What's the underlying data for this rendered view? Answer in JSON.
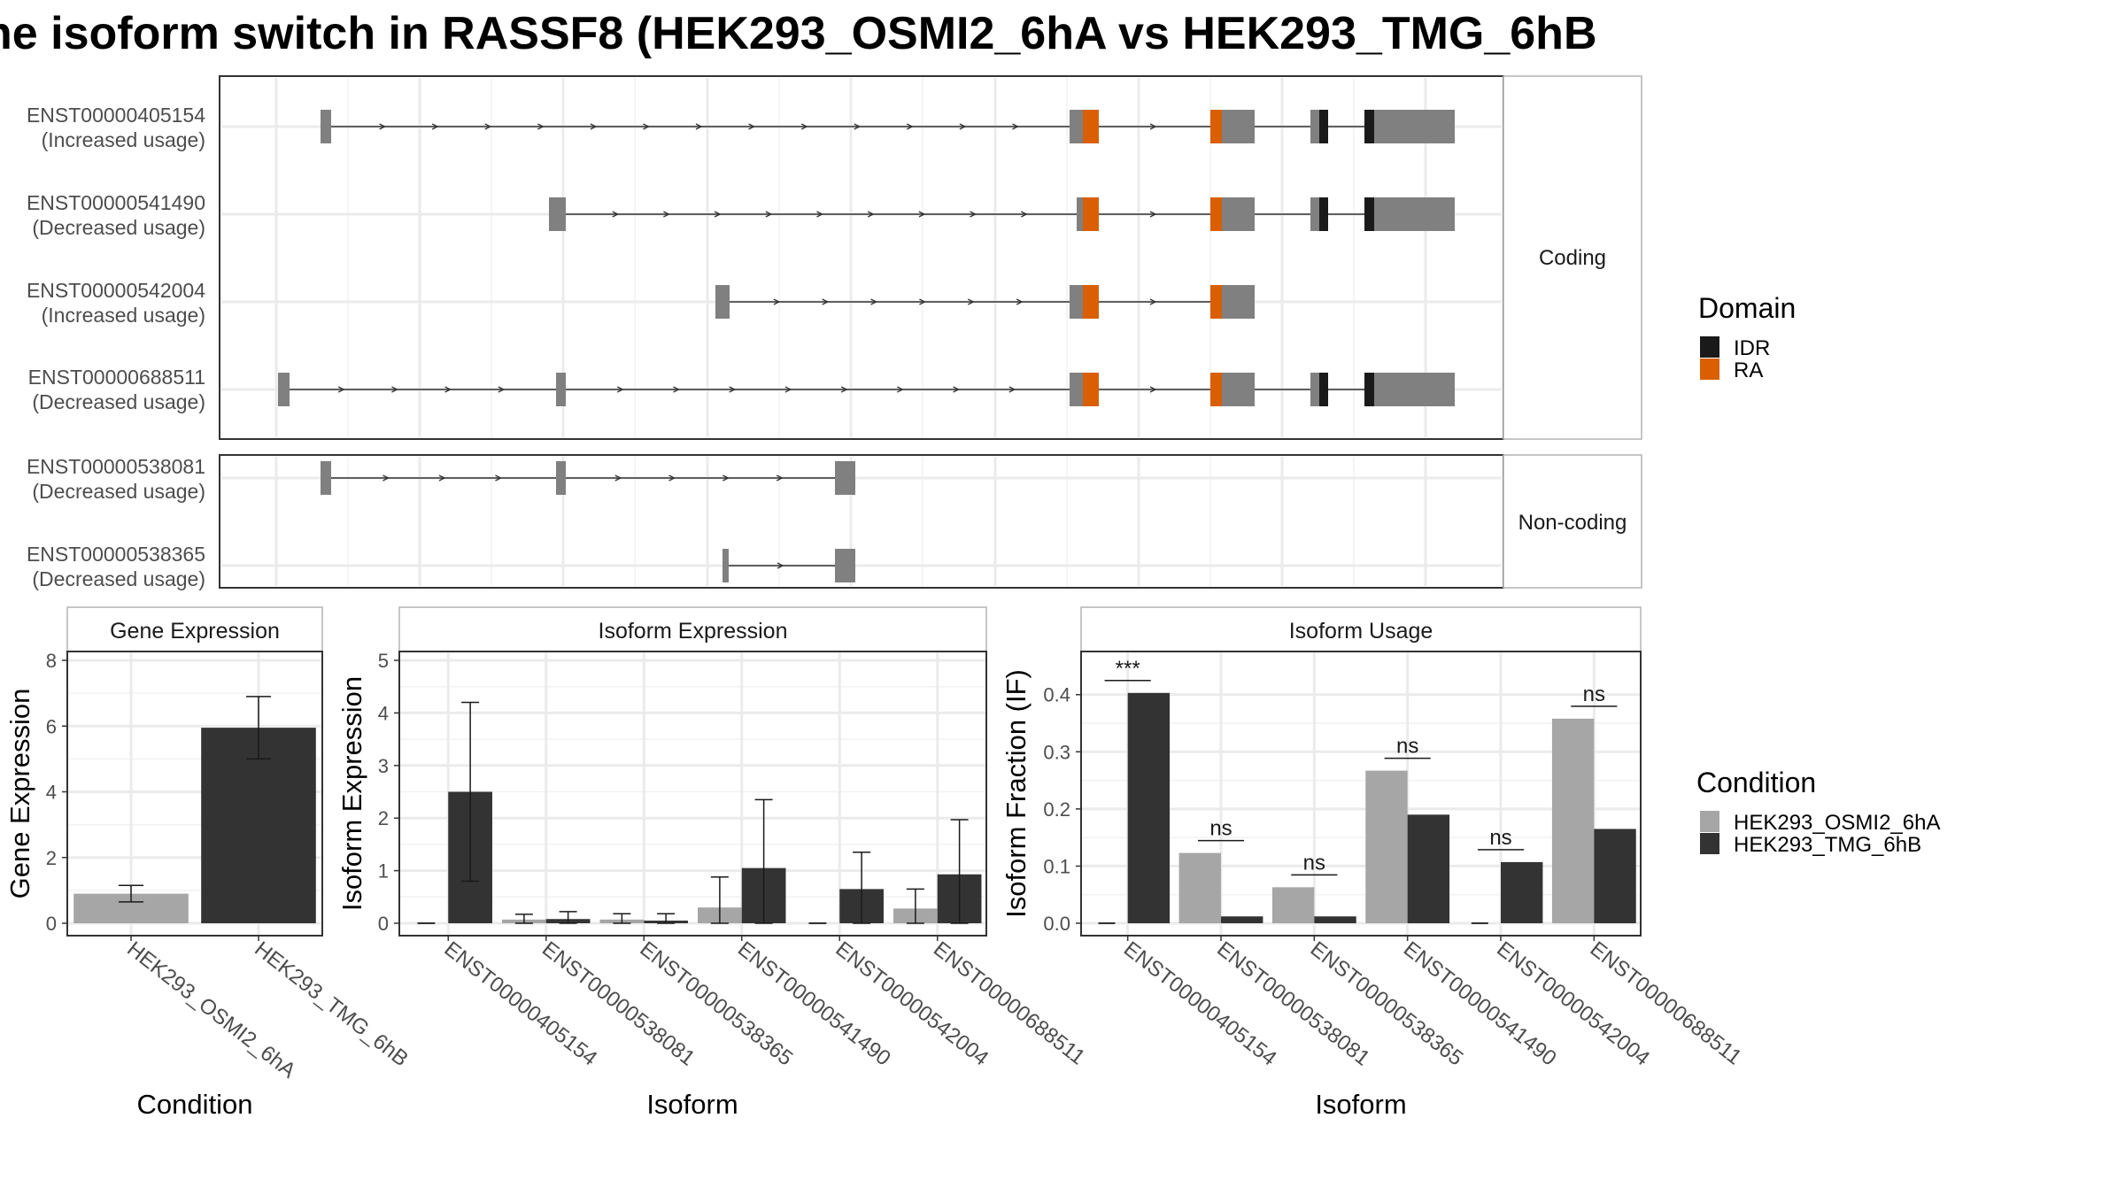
{
  "title": "ne isoform switch in RASSF8 (HEK293_OSMI2_6hA vs HEK293_TMG_6hB",
  "colors": {
    "exon": "#808080",
    "idr": "#1a1a1a",
    "ra": "#d95f02",
    "condition_a": "#a6a6a6",
    "condition_b": "#333333",
    "grid": "#ebebeb",
    "panel_border": "#333333",
    "strip_border": "#b3b3b3"
  },
  "structure": {
    "strip_coding": "Coding",
    "strip_noncoding": "Non-coding",
    "coding": [
      {
        "id": "ENST00000405154",
        "usage": "(Increased usage)"
      },
      {
        "id": "ENST00000541490",
        "usage": "(Decreased usage)"
      },
      {
        "id": "ENST00000542004",
        "usage": "(Increased usage)"
      },
      {
        "id": "ENST00000688511",
        "usage": "(Decreased usage)"
      }
    ],
    "noncoding": [
      {
        "id": "ENST00000538081",
        "usage": "(Decreased usage)"
      },
      {
        "id": "ENST00000538365",
        "usage": "(Decreased usage)"
      }
    ]
  },
  "legend_domain": {
    "title": "Domain",
    "items": [
      {
        "label": "IDR",
        "color": "#1a1a1a"
      },
      {
        "label": "RA",
        "color": "#d95f02"
      }
    ]
  },
  "legend_condition": {
    "title": "Condition",
    "items": [
      {
        "label": "HEK293_OSMI2_6hA",
        "color": "#a6a6a6"
      },
      {
        "label": "HEK293_TMG_6hB",
        "color": "#333333"
      }
    ]
  },
  "chart_data": [
    {
      "type": "bar",
      "title": "Gene Expression",
      "xlabel": "Condition",
      "ylabel": "Gene Expression",
      "ylim": [
        0,
        8
      ],
      "yticks": [
        0,
        2,
        4,
        6,
        8
      ],
      "categories": [
        "HEK293_OSMI2_6hA",
        "HEK293_TMG_6hB"
      ],
      "values": [
        0.9,
        5.95
      ],
      "errors": [
        [
          0.65,
          1.15
        ],
        [
          5.0,
          6.9
        ]
      ]
    },
    {
      "type": "bar",
      "title": "Isoform Expression",
      "xlabel": "Isoform",
      "ylabel": "Isoform Expression",
      "ylim": [
        0,
        5
      ],
      "yticks": [
        0,
        1,
        2,
        3,
        4,
        5
      ],
      "categories": [
        "ENST00000405154",
        "ENST00000538081",
        "ENST00000538365",
        "ENST00000541490",
        "ENST00000542004",
        "ENST00000688511"
      ],
      "series": [
        {
          "name": "HEK293_OSMI2_6hA",
          "values": [
            0.0,
            0.07,
            0.07,
            0.3,
            0.0,
            0.28
          ],
          "errors": [
            [
              0,
              0
            ],
            [
              0.0,
              0.17
            ],
            [
              0.0,
              0.18
            ],
            [
              0.0,
              0.88
            ],
            [
              0,
              0
            ],
            [
              0.0,
              0.65
            ]
          ]
        },
        {
          "name": "HEK293_TMG_6hB",
          "values": [
            2.5,
            0.08,
            0.05,
            1.05,
            0.65,
            0.93
          ],
          "errors": [
            [
              0.8,
              4.2
            ],
            [
              0.0,
              0.22
            ],
            [
              0.0,
              0.18
            ],
            [
              0.0,
              2.35
            ],
            [
              0.0,
              1.35
            ],
            [
              0.0,
              1.97
            ]
          ]
        }
      ]
    },
    {
      "type": "bar",
      "title": "Isoform Usage",
      "xlabel": "Isoform",
      "ylabel": "Isoform Fraction (IF)",
      "ylim": [
        0,
        0.46
      ],
      "yticks": [
        0.0,
        0.1,
        0.2,
        0.3,
        0.4
      ],
      "ytick_labels": [
        "0.0",
        "0.1",
        "0.2",
        "0.3",
        "0.4"
      ],
      "categories": [
        "ENST00000405154",
        "ENST00000538081",
        "ENST00000538365",
        "ENST00000541490",
        "ENST00000542004",
        "ENST00000688511"
      ],
      "series": [
        {
          "name": "HEK293_OSMI2_6hA",
          "values": [
            0.0,
            0.123,
            0.063,
            0.267,
            0.0,
            0.358
          ]
        },
        {
          "name": "HEK293_TMG_6hB",
          "values": [
            0.403,
            0.012,
            0.012,
            0.19,
            0.107,
            0.165
          ]
        }
      ],
      "significance": [
        "***",
        "ns",
        "ns",
        "ns",
        "ns",
        "ns"
      ]
    }
  ]
}
